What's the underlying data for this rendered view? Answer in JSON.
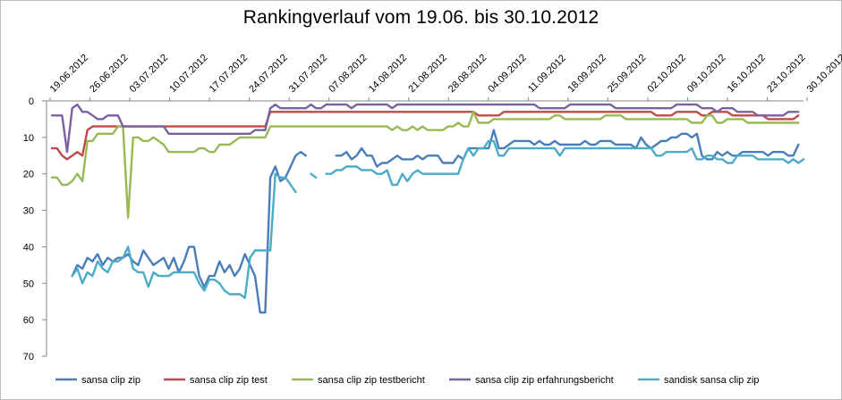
{
  "chart_data": {
    "type": "line",
    "title": "Rankingverlauf vom 19.06. bis 30.10.2012",
    "xlabel": "",
    "ylabel": "",
    "ylim": [
      0,
      70
    ],
    "y_inverted": true,
    "y_ticks": [
      "0",
      "10",
      "20",
      "30",
      "40",
      "50",
      "60",
      "70"
    ],
    "grid": false,
    "legend": "bottom",
    "x_tick_labels": [
      "19.06.2012",
      "26.06.2012",
      "03.07.2012",
      "10.07.2012",
      "17.07.2012",
      "24.07.2012",
      "31.07.2012",
      "07.08.2012",
      "14.08.2012",
      "21.08.2012",
      "28.08.2012",
      "04.09.2012",
      "11.09.2012",
      "18.09.2012",
      "25.09.2012",
      "02.10.2012",
      "09.10.2012",
      "16.10.2012",
      "23.10.2012",
      "30.10.2012"
    ],
    "x_day_start": "19.06.2012",
    "series": [
      {
        "name": "sansa clip zip",
        "color": "#4a7ebb",
        "values": [
          null,
          null,
          null,
          null,
          48,
          45,
          46,
          43,
          44,
          42,
          45,
          43,
          44,
          43,
          43,
          42,
          44,
          45,
          41,
          43,
          45,
          44,
          43,
          46,
          43,
          47,
          44,
          40,
          40,
          48,
          51,
          48,
          48,
          44,
          47,
          45,
          48,
          46,
          42,
          45,
          48,
          58,
          58,
          21,
          18,
          22,
          21,
          18,
          15,
          14,
          15,
          null,
          null,
          null,
          null,
          null,
          15,
          15,
          14,
          16,
          15,
          13,
          15,
          15,
          18,
          17,
          17,
          16,
          15,
          16,
          16,
          16,
          15,
          16,
          15,
          15,
          15,
          17,
          17,
          17,
          15,
          16,
          13,
          13,
          13,
          13,
          13,
          8,
          13,
          13,
          12,
          11,
          11,
          11,
          11,
          12,
          11,
          12,
          12,
          11,
          12,
          12,
          12,
          12,
          12,
          11,
          12,
          12,
          11,
          11,
          11,
          12,
          12,
          12,
          12,
          13,
          10,
          12,
          13,
          12,
          11,
          11,
          10,
          10,
          9,
          9,
          10,
          9,
          15,
          16,
          16,
          14,
          15,
          14,
          15,
          15,
          14,
          14,
          14,
          14,
          14,
          15,
          14,
          14,
          14,
          15,
          15,
          12
        ]
      },
      {
        "name": "sansa clip zip test",
        "color": "#be4b48",
        "values": [
          13,
          13,
          15,
          16,
          15,
          14,
          15,
          8,
          7,
          7,
          7,
          7,
          7,
          7,
          7,
          7,
          7,
          7,
          7,
          7,
          7,
          7,
          7,
          7,
          7,
          7,
          7,
          7,
          7,
          7,
          7,
          7,
          7,
          7,
          7,
          7,
          7,
          7,
          7,
          7,
          7,
          7,
          7,
          3,
          3,
          3,
          3,
          3,
          3,
          3,
          3,
          3,
          3,
          3,
          3,
          3,
          3,
          3,
          3,
          3,
          3,
          3,
          3,
          3,
          3,
          3,
          3,
          3,
          3,
          3,
          3,
          3,
          3,
          3,
          3,
          3,
          3,
          3,
          3,
          3,
          3,
          3,
          3,
          3,
          4,
          4,
          4,
          4,
          4,
          3,
          3,
          3,
          3,
          3,
          3,
          3,
          3,
          3,
          3,
          3,
          3,
          3,
          3,
          3,
          3,
          3,
          3,
          3,
          3,
          3,
          3,
          3,
          3,
          3,
          3,
          3,
          3,
          3,
          3,
          4,
          4,
          4,
          4,
          3,
          3,
          3,
          3,
          3,
          4,
          4,
          3,
          3,
          3,
          3,
          4,
          4,
          4,
          4,
          4,
          4,
          4,
          5,
          5,
          5,
          5,
          5,
          5,
          4
        ]
      },
      {
        "name": "sansa clip zip testbericht",
        "color": "#98b954",
        "values": [
          21,
          21,
          23,
          23,
          22,
          20,
          22,
          11,
          11,
          9,
          9,
          9,
          9,
          7,
          7,
          32,
          10,
          10,
          11,
          11,
          10,
          11,
          12,
          14,
          14,
          14,
          14,
          14,
          14,
          13,
          13,
          14,
          14,
          12,
          12,
          12,
          11,
          10,
          10,
          10,
          10,
          10,
          10,
          7,
          7,
          7,
          7,
          7,
          7,
          7,
          7,
          7,
          7,
          7,
          7,
          7,
          7,
          7,
          7,
          7,
          7,
          7,
          7,
          7,
          7,
          7,
          7,
          8,
          7,
          8,
          8,
          7,
          8,
          7,
          8,
          8,
          8,
          8,
          7,
          7,
          6,
          7,
          7,
          3,
          6,
          6,
          6,
          5,
          5,
          5,
          5,
          5,
          5,
          5,
          5,
          5,
          5,
          5,
          5,
          4,
          4,
          5,
          5,
          5,
          5,
          5,
          5,
          5,
          5,
          4,
          4,
          4,
          4,
          5,
          5,
          5,
          5,
          5,
          5,
          5,
          5,
          5,
          5,
          5,
          5,
          5,
          6,
          6,
          6,
          4,
          4,
          6,
          6,
          5,
          5,
          5,
          5,
          6,
          6,
          6,
          6,
          6,
          6,
          6,
          6,
          6,
          6,
          6
        ]
      },
      {
        "name": "sansa clip zip erfahrungsbericht",
        "color": "#7d60a0",
        "values": [
          4,
          4,
          4,
          14,
          2,
          1,
          3,
          3,
          4,
          5,
          5,
          4,
          4,
          4,
          7,
          7,
          7,
          7,
          7,
          7,
          7,
          7,
          7,
          9,
          9,
          9,
          9,
          9,
          9,
          9,
          9,
          9,
          9,
          9,
          9,
          9,
          9,
          9,
          9,
          9,
          8,
          8,
          8,
          2,
          1,
          2,
          2,
          2,
          2,
          2,
          2,
          1,
          2,
          2,
          1,
          1,
          1,
          1,
          1,
          2,
          1,
          1,
          1,
          1,
          1,
          1,
          1,
          2,
          1,
          1,
          1,
          1,
          1,
          1,
          1,
          1,
          1,
          1,
          1,
          1,
          1,
          1,
          1,
          1,
          1,
          1,
          1,
          1,
          1,
          1,
          1,
          1,
          1,
          1,
          1,
          1,
          2,
          2,
          2,
          2,
          2,
          2,
          1,
          1,
          1,
          1,
          1,
          1,
          1,
          1,
          1,
          2,
          2,
          2,
          2,
          2,
          2,
          2,
          2,
          2,
          2,
          2,
          2,
          1,
          1,
          1,
          1,
          1,
          2,
          2,
          2,
          3,
          2,
          2,
          2,
          3,
          3,
          3,
          3,
          4,
          4,
          4,
          4,
          4,
          4,
          3,
          3,
          3
        ]
      },
      {
        "name": "sandisk sansa clip zip",
        "color": "#4bacc6",
        "values": [
          null,
          null,
          null,
          null,
          48,
          46,
          50,
          47,
          48,
          44,
          46,
          47,
          44,
          44,
          43,
          40,
          46,
          47,
          47,
          51,
          47,
          48,
          48,
          48,
          47,
          47,
          47,
          47,
          47,
          50,
          52,
          49,
          49,
          50,
          52,
          53,
          53,
          53,
          54,
          43,
          41,
          41,
          41,
          41,
          20,
          21,
          21,
          23,
          25,
          null,
          null,
          20,
          21,
          null,
          20,
          20,
          19,
          19,
          18,
          18,
          18,
          19,
          19,
          19,
          20,
          20,
          19,
          23,
          23,
          20,
          22,
          20,
          19,
          20,
          20,
          20,
          20,
          20,
          20,
          20,
          20,
          16,
          13,
          15,
          13,
          13,
          11,
          11,
          15,
          15,
          13,
          13,
          13,
          13,
          13,
          13,
          13,
          13,
          13,
          13,
          15,
          13,
          13,
          13,
          13,
          13,
          13,
          13,
          13,
          13,
          13,
          13,
          13,
          13,
          13,
          13,
          13,
          13,
          13,
          15,
          15,
          14,
          14,
          14,
          14,
          14,
          13,
          16,
          16,
          15,
          15,
          16,
          16,
          17,
          17,
          15,
          15,
          15,
          15,
          16,
          16,
          16,
          16,
          16,
          16,
          17,
          16,
          17,
          16
        ]
      }
    ]
  }
}
